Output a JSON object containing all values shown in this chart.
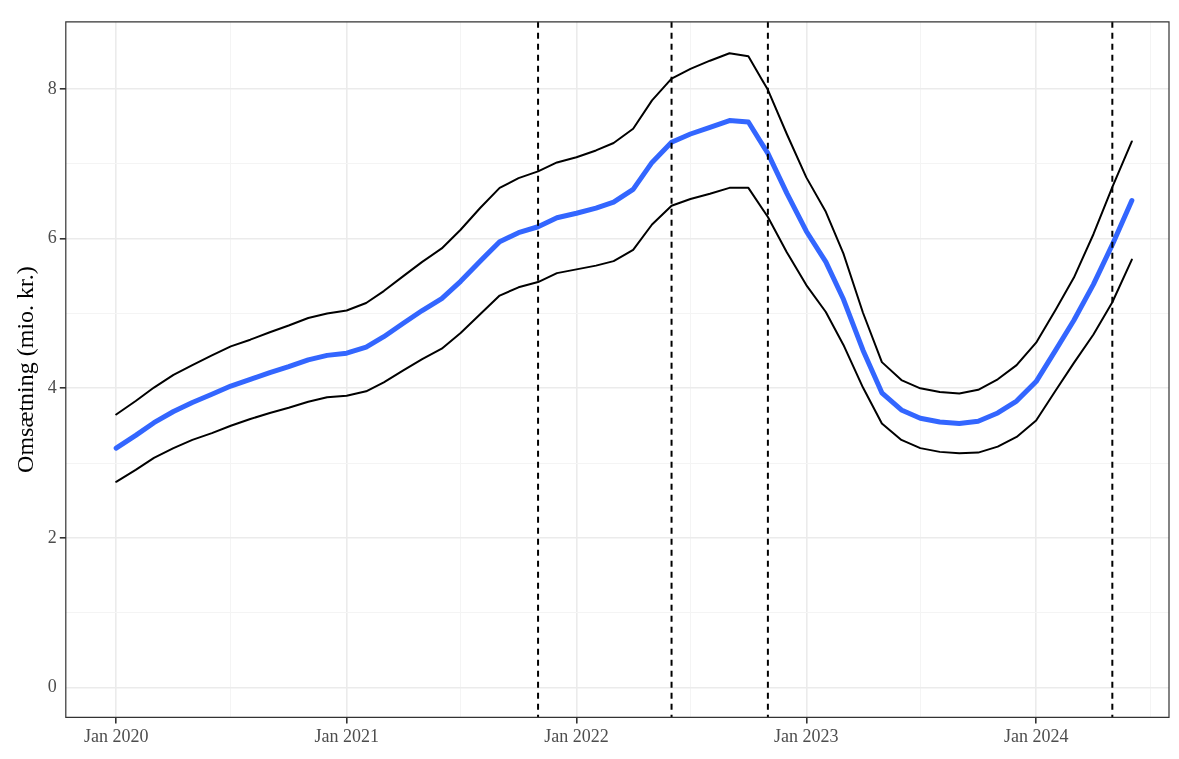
{
  "chart_data": {
    "type": "line",
    "ylabel": "Omsætning (mio. kr.)",
    "x": [
      "2020-01",
      "2020-02",
      "2020-03",
      "2020-04",
      "2020-05",
      "2020-06",
      "2020-07",
      "2020-08",
      "2020-09",
      "2020-10",
      "2020-11",
      "2020-12",
      "2021-01",
      "2021-02",
      "2021-03",
      "2021-04",
      "2021-05",
      "2021-06",
      "2021-07",
      "2021-08",
      "2021-09",
      "2021-10",
      "2021-11",
      "2021-12",
      "2022-01",
      "2022-02",
      "2022-03",
      "2022-04",
      "2022-05",
      "2022-06",
      "2022-07",
      "2022-08",
      "2022-09",
      "2022-10",
      "2022-11",
      "2022-12",
      "2023-01",
      "2023-02",
      "2023-03",
      "2023-04",
      "2023-05",
      "2023-06",
      "2023-07",
      "2023-08",
      "2023-09",
      "2023-10",
      "2023-11",
      "2023-12",
      "2024-01",
      "2024-02",
      "2024-03",
      "2024-04",
      "2024-05",
      "2024-06"
    ],
    "series": [
      {
        "color": "#000000",
        "values": [
          3.65,
          3.83,
          4.01,
          4.18,
          4.31,
          4.44,
          4.56,
          4.65,
          4.75,
          4.84,
          4.94,
          5.0,
          5.04,
          5.14,
          5.3,
          5.5,
          5.69,
          5.87,
          6.12,
          6.41,
          6.68,
          6.81,
          6.9,
          7.02,
          7.09,
          7.18,
          7.28,
          7.47,
          7.85,
          8.14,
          8.27,
          8.38,
          8.48,
          8.44,
          7.99,
          7.4,
          6.82,
          6.36,
          5.8,
          5.01,
          4.35,
          4.11,
          4.0,
          3.95,
          3.93,
          3.98,
          4.12,
          4.31,
          4.61,
          5.05,
          5.48,
          6.06,
          6.69,
          7.3
        ]
      },
      {
        "color": "#000000",
        "values": [
          2.75,
          2.91,
          3.07,
          3.2,
          3.31,
          3.4,
          3.5,
          3.59,
          3.67,
          3.74,
          3.82,
          3.88,
          3.9,
          3.96,
          4.08,
          4.24,
          4.39,
          4.53,
          4.74,
          4.99,
          5.24,
          5.35,
          5.42,
          5.54,
          5.59,
          5.64,
          5.7,
          5.85,
          6.19,
          6.44,
          6.53,
          6.6,
          6.68,
          6.68,
          6.29,
          5.82,
          5.38,
          5.02,
          4.58,
          4.01,
          3.53,
          3.31,
          3.2,
          3.15,
          3.13,
          3.14,
          3.22,
          3.35,
          3.57,
          3.97,
          4.34,
          4.72,
          5.15,
          5.72
        ]
      },
      {
        "color": "#3366ff",
        "values": [
          3.2,
          3.37,
          3.54,
          3.69,
          3.81,
          3.92,
          4.03,
          4.12,
          4.21,
          4.29,
          4.38,
          4.44,
          4.47,
          4.55,
          4.69,
          4.87,
          5.04,
          5.2,
          5.43,
          5.7,
          5.96,
          6.08,
          6.16,
          6.28,
          6.34,
          6.41,
          6.49,
          6.66,
          7.02,
          7.29,
          7.4,
          7.49,
          7.58,
          7.56,
          7.14,
          6.61,
          6.1,
          5.69,
          5.19,
          4.51,
          3.94,
          3.71,
          3.6,
          3.55,
          3.53,
          3.56,
          3.67,
          3.83,
          4.09,
          4.51,
          4.91,
          5.39,
          5.92,
          6.51
        ]
      }
    ],
    "xlim": [
      "2019-10-13",
      "2024-07-30"
    ],
    "xticks": [
      {
        "value": "2020-01",
        "label": "Jan 2020"
      },
      {
        "value": "2020-07",
        "label": null
      },
      {
        "value": "2021-01",
        "label": "Jan 2021"
      },
      {
        "value": "2021-07",
        "label": null
      },
      {
        "value": "2022-01",
        "label": "Jan 2022"
      },
      {
        "value": "2022-07",
        "label": null
      },
      {
        "value": "2023-01",
        "label": "Jan 2023"
      },
      {
        "value": "2023-07",
        "label": null
      },
      {
        "value": "2024-01",
        "label": "Jan 2024"
      },
      {
        "value": "2024-07",
        "label": null
      }
    ],
    "ylim": [
      -0.4,
      8.9
    ],
    "yticks": [
      0,
      {
        "value": 1,
        "label": null
      },
      2,
      {
        "value": 3,
        "label": null
      },
      4,
      {
        "value": 5,
        "label": null
      },
      6,
      {
        "value": 7,
        "label": null
      },
      8
    ],
    "ref_lines": [
      {
        "axis": "x",
        "value": "2021-11",
        "line_style": "dashed",
        "color": "#000000"
      },
      {
        "axis": "x",
        "value": "2022-06",
        "line_style": "dashed",
        "color": "#000000"
      },
      {
        "axis": "x",
        "value": "2022-11",
        "line_style": "dashed",
        "color": "#000000"
      },
      {
        "axis": "x",
        "value": "2024-05",
        "line_style": "dashed",
        "color": "#000000"
      }
    ],
    "grid": true,
    "legend": false,
    "marker": "none",
    "line_style": "solid"
  }
}
